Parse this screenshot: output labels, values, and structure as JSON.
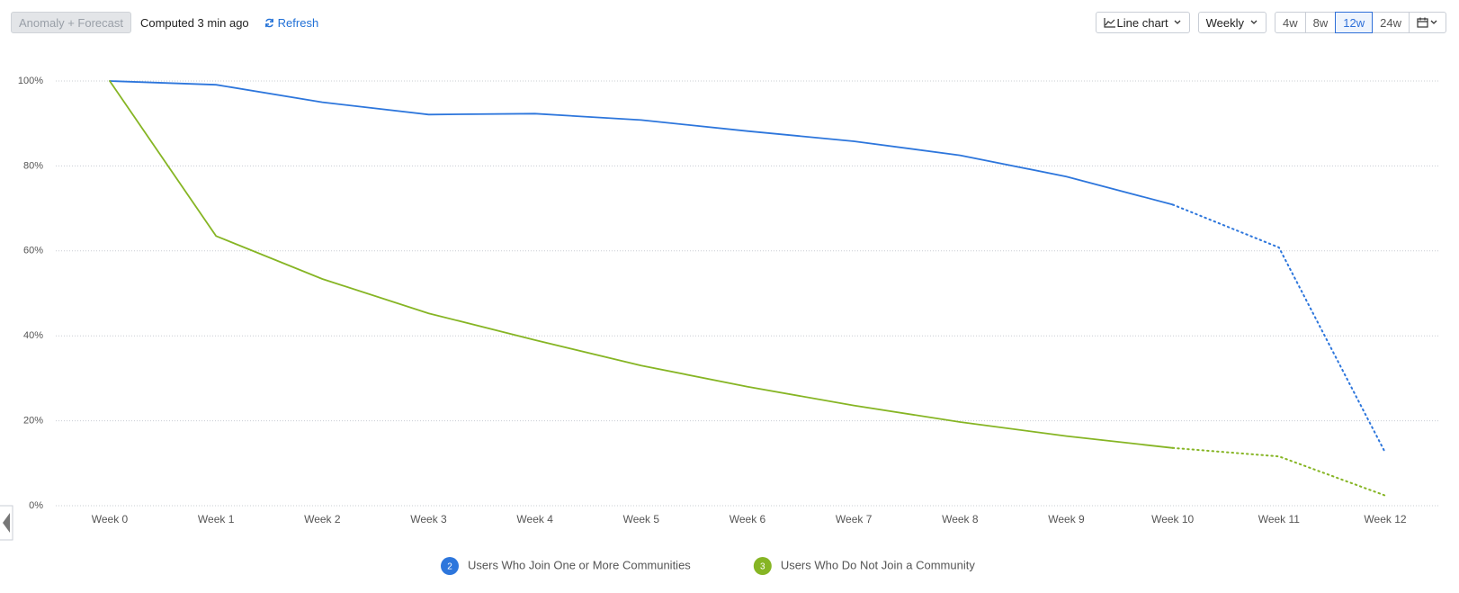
{
  "toolbar": {
    "toggle": "Anomaly + Forecast",
    "status": "Computed 3 min ago",
    "refresh": "Refresh",
    "chart_type": "Line chart",
    "interval": "Weekly",
    "ranges": [
      "4w",
      "8w",
      "12w",
      "24w"
    ],
    "selected_range": "12w"
  },
  "chart_data": {
    "type": "line",
    "categories": [
      "Week 0",
      "Week 1",
      "Week 2",
      "Week 3",
      "Week 4",
      "Week 5",
      "Week 6",
      "Week 7",
      "Week 8",
      "Week 9",
      "Week 10",
      "Week 11",
      "Week 12"
    ],
    "incomplete_from": "Week 10",
    "series": [
      {
        "name": "Users Who Join One or More Communities",
        "badge": "2",
        "color": "#2d76dc",
        "values": [
          100,
          99.1,
          95.0,
          92.1,
          92.3,
          90.8,
          88.2,
          85.8,
          82.5,
          77.5,
          70.9,
          60.8,
          12.5
        ]
      },
      {
        "name": "Users Who Do Not Join a Community",
        "badge": "3",
        "color": "#86b524",
        "values": [
          100,
          63.5,
          53.4,
          45.3,
          39.0,
          33.0,
          28.0,
          23.6,
          19.7,
          16.4,
          13.6,
          11.6,
          2.4
        ]
      }
    ],
    "ylim": [
      0,
      100
    ],
    "yticks": [
      {
        "value": 0,
        "label": "0%"
      },
      {
        "value": 20,
        "label": "20%"
      },
      {
        "value": 40,
        "label": "40%"
      },
      {
        "value": 60,
        "label": "60%"
      },
      {
        "value": 80,
        "label": "80%"
      },
      {
        "value": 100,
        "label": "100%"
      }
    ],
    "grid": true
  }
}
